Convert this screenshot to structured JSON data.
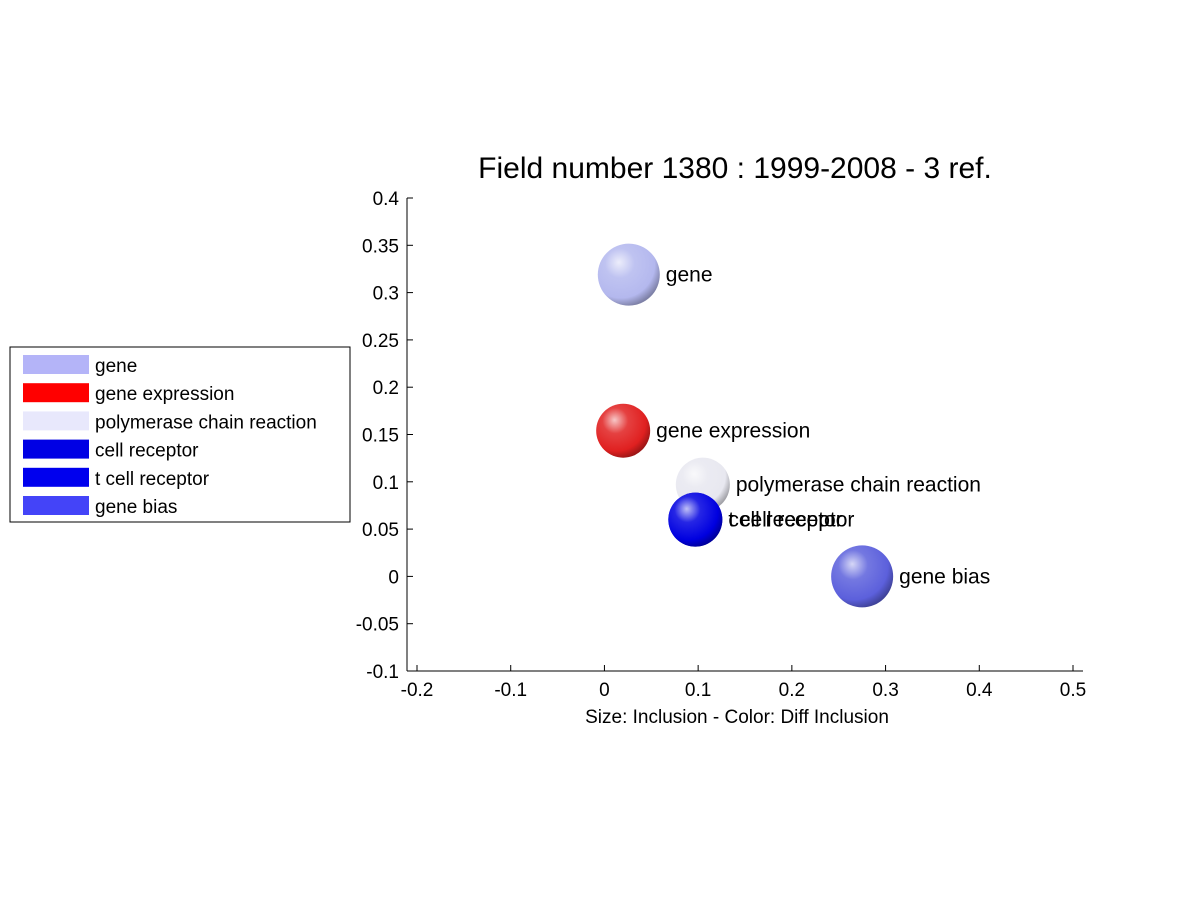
{
  "chart_data": {
    "type": "scatter",
    "title": "Field number 1380 : 1999-2008  - 3 ref.",
    "xlabel": "Size: Inclusion - Color: Diff Inclusion",
    "ylabel": "",
    "xlim": [
      -0.2,
      0.5
    ],
    "ylim": [
      -0.1,
      0.4
    ],
    "grid": false,
    "legend_position": "left",
    "x_ticks": [
      "-0.2",
      "-0.1",
      "0",
      "0.1",
      "0.2",
      "0.3",
      "0.4",
      "0.5"
    ],
    "y_ticks": [
      "-0.1",
      "-0.05",
      "0",
      "0.05",
      "0.1",
      "0.15",
      "0.2",
      "0.25",
      "0.3",
      "0.35",
      "0.4"
    ],
    "points": [
      {
        "label": "gene",
        "x": 0.026,
        "y": 0.319,
        "size": 1.0,
        "color": "#b4b8ee"
      },
      {
        "label": "gene expression",
        "x": 0.02,
        "y": 0.154,
        "size": 0.9,
        "color": "#e02020"
      },
      {
        "label": "polymerase chain reaction",
        "x": 0.105,
        "y": 0.097,
        "size": 0.9,
        "color": "#e8e8f0"
      },
      {
        "label": "cell receptor",
        "x": 0.097,
        "y": 0.06,
        "size": 0.9,
        "color": "#0a0ad8"
      },
      {
        "label": "t cell receptor",
        "x": 0.097,
        "y": 0.06,
        "size": 0.9,
        "color": "#0000e0"
      },
      {
        "label": "gene bias",
        "x": 0.275,
        "y": 0.0,
        "size": 1.0,
        "color": "#5c60dc"
      }
    ],
    "legend": [
      {
        "label": "gene",
        "color": "#b4b4f8"
      },
      {
        "label": "gene expression",
        "color": "#ff0000"
      },
      {
        "label": "polymerase chain reaction",
        "color": "#e8e8fc"
      },
      {
        "label": "cell receptor",
        "color": "#0000e4"
      },
      {
        "label": "t cell receptor",
        "color": "#0000ee"
      },
      {
        "label": "gene bias",
        "color": "#4444f8"
      }
    ]
  }
}
